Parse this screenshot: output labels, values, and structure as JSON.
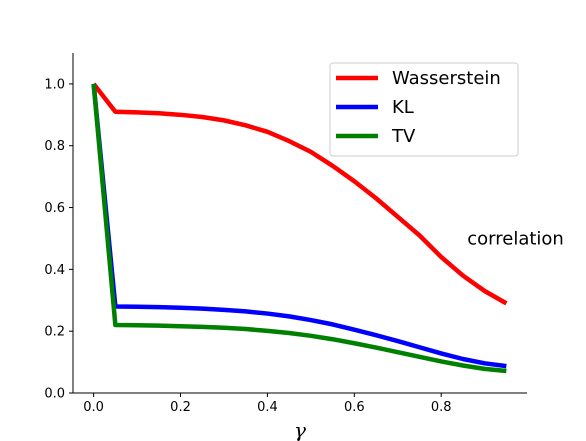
{
  "chart_data": {
    "type": "line",
    "xlabel": "γ",
    "ylabel": "",
    "xlim": [
      -0.0475,
      0.9975
    ],
    "ylim": [
      0.0,
      1.1
    ],
    "xticks": [
      0.0,
      0.2,
      0.4,
      0.6,
      0.8
    ],
    "yticks": [
      0.0,
      0.2,
      0.4,
      0.6,
      0.8,
      1.0
    ],
    "xtick_labels": [
      "0.0",
      "0.2",
      "0.4",
      "0.6",
      "0.8"
    ],
    "ytick_labels": [
      "0.0",
      "0.2",
      "0.4",
      "0.6",
      "0.8",
      "1.0"
    ],
    "grid": false,
    "legend_position": "top-right",
    "annotation": {
      "text": "correlation",
      "x": 0.86,
      "y": 0.5
    },
    "x": [
      0.0,
      0.05,
      0.1,
      0.15,
      0.2,
      0.25,
      0.3,
      0.35,
      0.4,
      0.45,
      0.5,
      0.55,
      0.6,
      0.65,
      0.7,
      0.75,
      0.8,
      0.85,
      0.9,
      0.95
    ],
    "series": [
      {
        "name": "Wasserstein",
        "color": "#ff0000",
        "values": [
          1.0,
          0.91,
          0.908,
          0.905,
          0.9,
          0.893,
          0.882,
          0.866,
          0.845,
          0.815,
          0.78,
          0.735,
          0.685,
          0.63,
          0.57,
          0.51,
          0.44,
          0.38,
          0.33,
          0.29
        ]
      },
      {
        "name": "KL",
        "color": "#0000ff",
        "values": [
          1.0,
          0.28,
          0.279,
          0.278,
          0.276,
          0.273,
          0.269,
          0.264,
          0.257,
          0.248,
          0.236,
          0.222,
          0.205,
          0.187,
          0.168,
          0.148,
          0.128,
          0.11,
          0.096,
          0.087
        ]
      },
      {
        "name": "TV",
        "color": "#008000",
        "values": [
          1.0,
          0.22,
          0.219,
          0.218,
          0.216,
          0.214,
          0.211,
          0.207,
          0.201,
          0.194,
          0.185,
          0.174,
          0.161,
          0.147,
          0.132,
          0.117,
          0.102,
          0.089,
          0.078,
          0.071
        ]
      }
    ]
  }
}
